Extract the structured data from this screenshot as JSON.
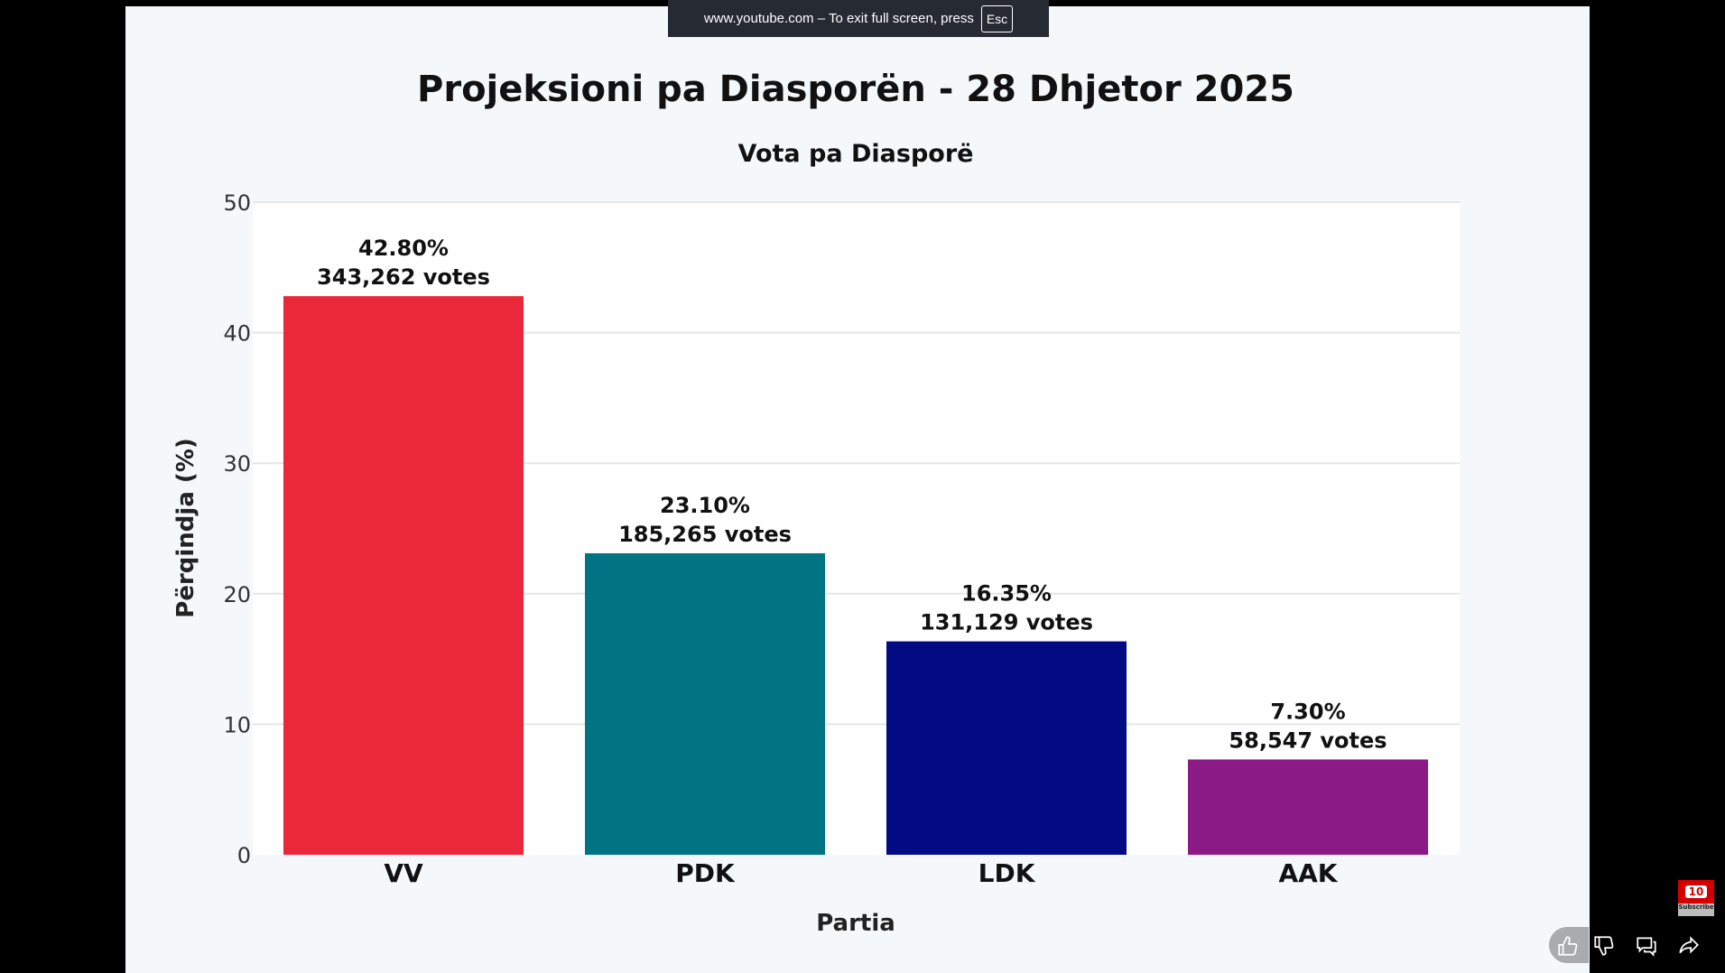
{
  "banner": {
    "text": "www.youtube.com – To exit full screen, press",
    "key": "Esc"
  },
  "chart_data": {
    "type": "bar",
    "title": "Projeksioni pa Diasporën - 28 Dhjetor 2025",
    "subtitle": "Vota pa Diasporë",
    "xlabel": "Partia",
    "ylabel": "Përqindja (%)",
    "ylim": [
      0,
      50
    ],
    "yticks": [
      0,
      10,
      20,
      30,
      40,
      50
    ],
    "grid": true,
    "categories": [
      "VV",
      "PDK",
      "LDK",
      "AAK"
    ],
    "values": [
      42.8,
      23.1,
      16.35,
      7.3
    ],
    "labels_pct": [
      "42.80%",
      "23.10%",
      "16.35%",
      "7.30%"
    ],
    "labels_votes": [
      "343,262 votes",
      "185,265 votes",
      "131,129 votes",
      "58,547 votes"
    ],
    "colors": [
      "#ea2839",
      "#007482",
      "#020a84",
      "#8b1a87"
    ]
  },
  "overlay": {
    "subscribe_label": "Subscribe",
    "subscribe_badge": "10",
    "icons": [
      "like-icon",
      "dislike-icon",
      "comment-icon",
      "share-icon"
    ]
  }
}
